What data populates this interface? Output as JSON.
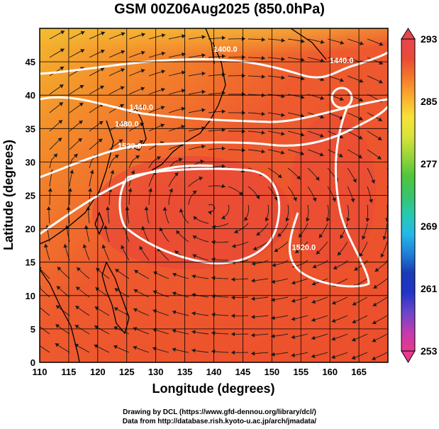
{
  "title": "GSM 00Z06Aug2025 (850.0hPa)",
  "credits": {
    "line1": "Drawing by DCL (https://www.gfd-dennou.org/library/dcl/)",
    "line2": "Data from http://database.rish.kyoto-u.ac.jp/arch/jmadata/"
  },
  "chart_data": {
    "type": "heatmap",
    "title": "GSM 00Z06Aug2025 (850.0hPa)",
    "xlabel": "Longitude (degrees)",
    "ylabel": "Latitude  (degrees)",
    "xlim": [
      110,
      170
    ],
    "ylim": [
      0,
      50
    ],
    "x_ticks": [
      "110",
      "115",
      "120",
      "125",
      "130",
      "135",
      "140",
      "145",
      "150",
      "155",
      "160",
      "165"
    ],
    "y_ticks": [
      "0",
      "5",
      "10",
      "15",
      "20",
      "25",
      "30",
      "35",
      "40",
      "45"
    ],
    "grid": true,
    "colorbar": {
      "labels": [
        "293",
        "285",
        "277",
        "269",
        "261",
        "253"
      ],
      "min": 253,
      "max": 293,
      "colors": [
        "#e9398d",
        "#c03bb0",
        "#6a45c9",
        "#2233c8",
        "#1a3bb5",
        "#1f7fd8",
        "#25b8e8",
        "#27c9b0",
        "#39c46a",
        "#52c63a",
        "#9ad53a",
        "#d9e23a",
        "#f6e23a",
        "#fbb02e",
        "#f47a2c",
        "#ea4a36",
        "#e5464d"
      ]
    },
    "contours": [
      {
        "label": "1400.0",
        "lon": 142,
        "lat": 46.5
      },
      {
        "label": "1440.0",
        "lon": 162,
        "lat": 44.8
      },
      {
        "label": "1440.0",
        "lon": 127.5,
        "lat": 37.8
      },
      {
        "label": "1480.0",
        "lon": 125,
        "lat": 35.3
      },
      {
        "label": "1520.0",
        "lon": 125.5,
        "lat": 32
      },
      {
        "label": "1520.0",
        "lon": 155.5,
        "lat": 16.8
      }
    ]
  }
}
